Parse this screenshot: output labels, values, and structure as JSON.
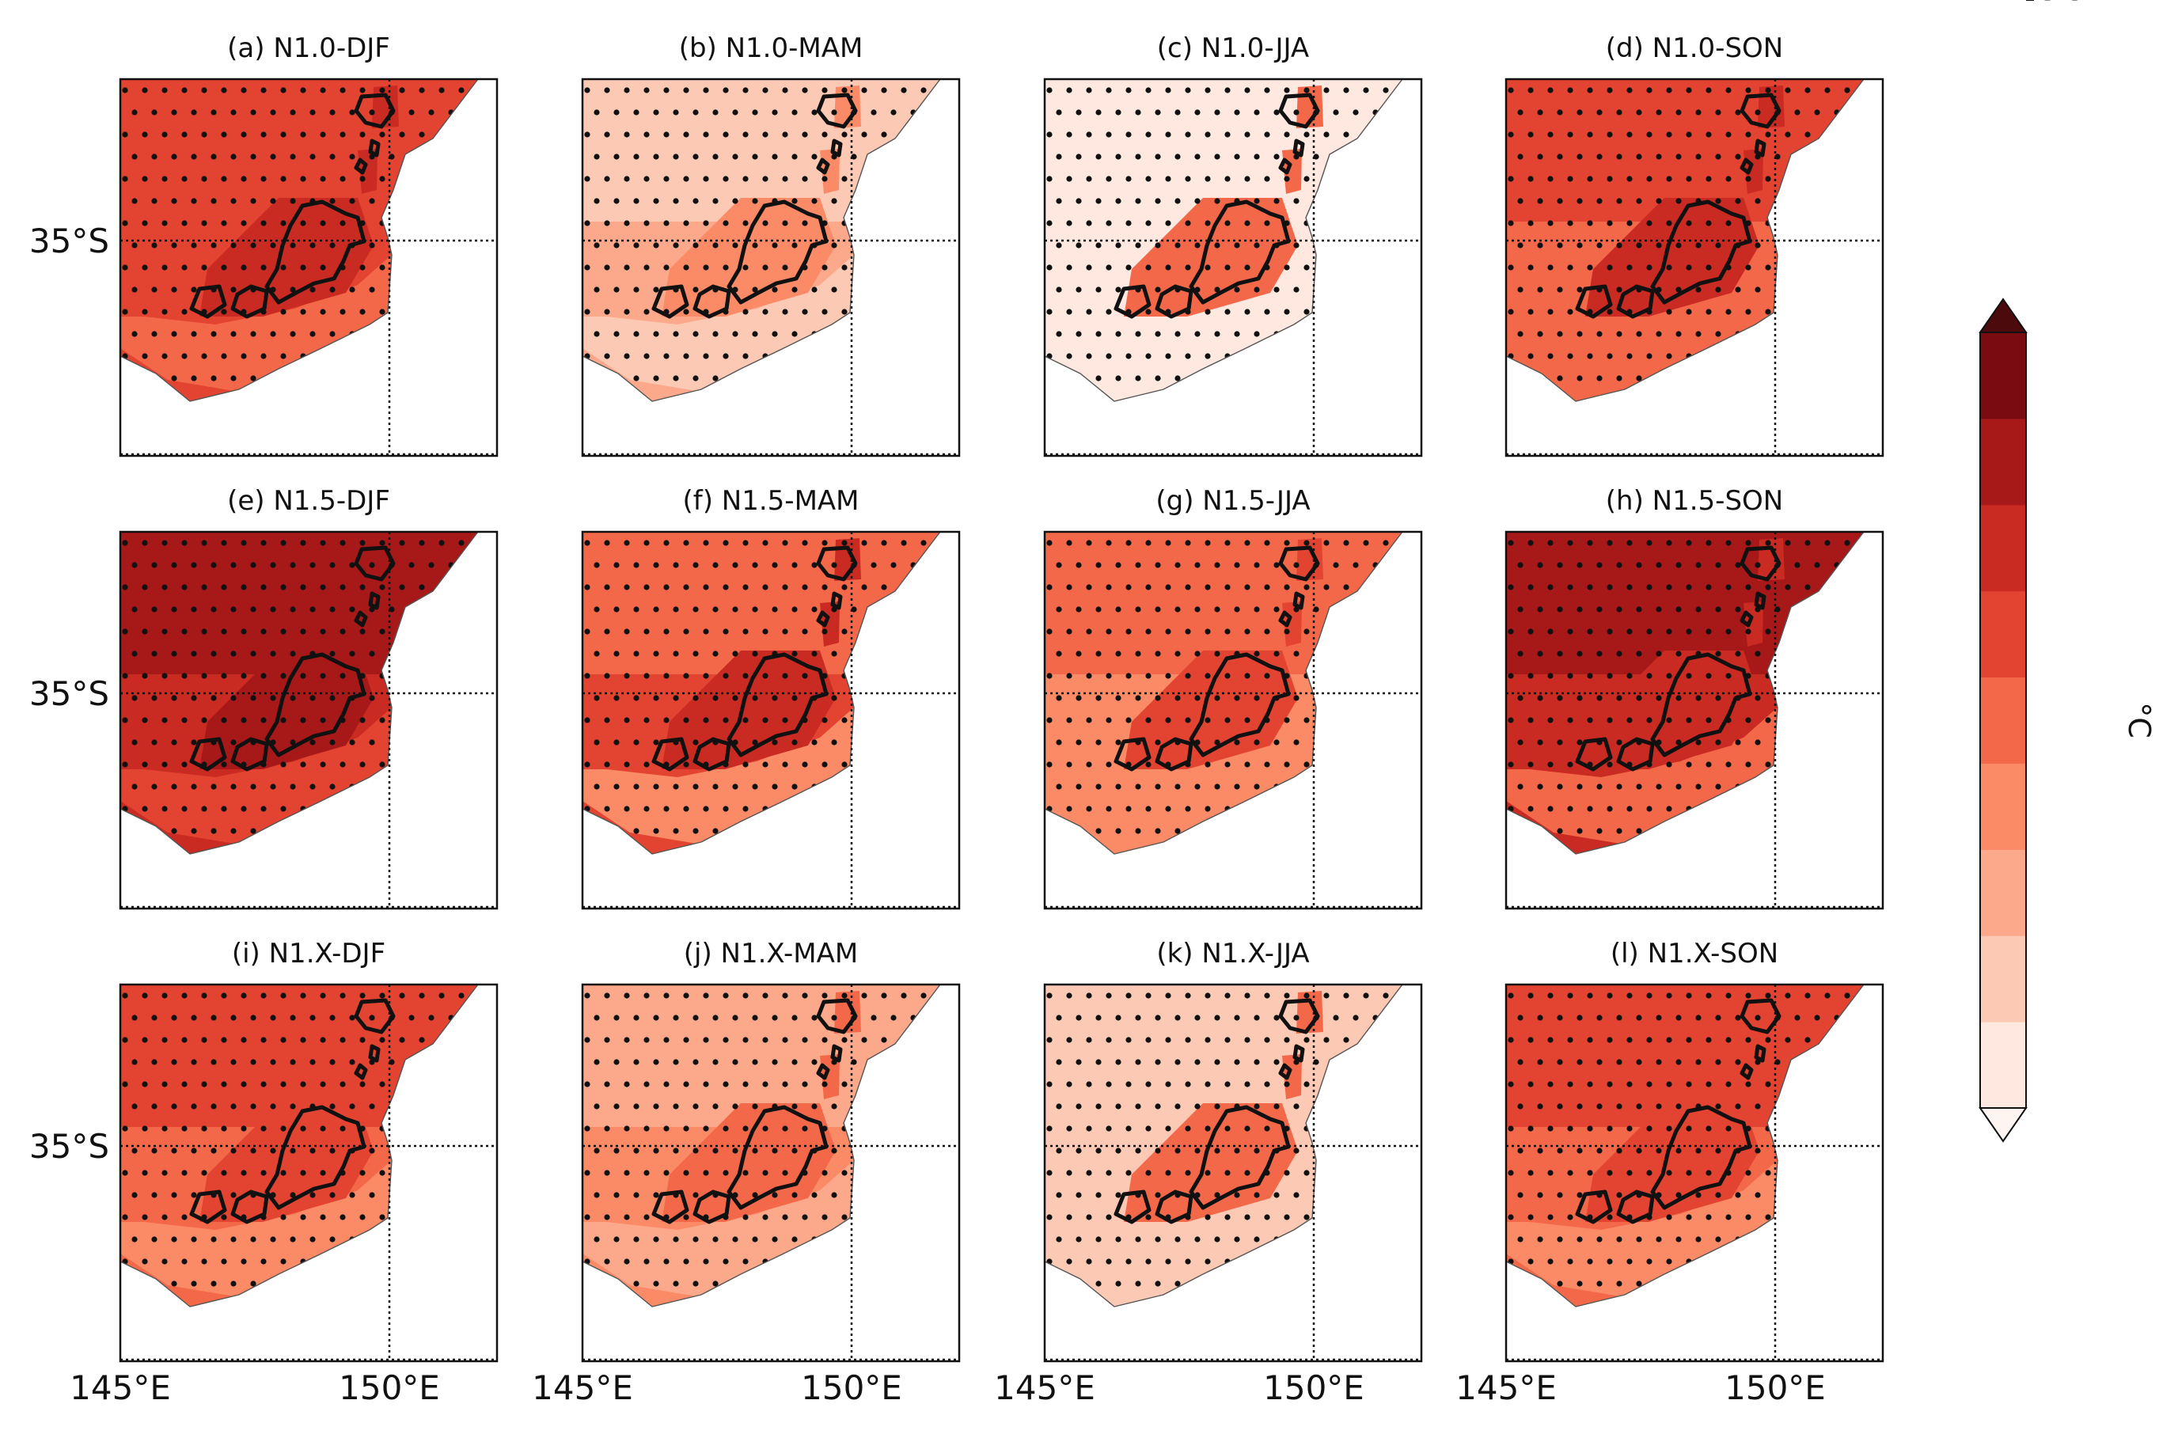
{
  "chart_data": {
    "type": "heatmap",
    "title": "",
    "variable": "temperature change",
    "colorbar": {
      "label": "°C",
      "ticks": [
        "1.6",
        "1.8",
        "2.0",
        "2.2",
        "2.4",
        "2.6",
        "2.8",
        "3.0",
        "3.2"
      ],
      "levels": [
        1.6,
        1.8,
        2.0,
        2.2,
        2.4,
        2.6,
        2.8,
        3.0,
        3.2
      ],
      "colors": [
        "#fee8df",
        "#fcc9b4",
        "#fca98b",
        "#fb8a67",
        "#f4684a",
        "#e34331",
        "#c92a22",
        "#a71819",
        "#7a0c11"
      ],
      "extend": "both",
      "under_color": "#fff5f0",
      "over_color": "#4d0a0d"
    },
    "axes": {
      "x_ticks": [
        "145°E",
        "150°E"
      ],
      "x_tick_values": [
        145,
        150
      ],
      "y_ticks": [
        "35°S"
      ],
      "y_tick_values": [
        -35
      ],
      "lon_range": [
        145,
        152
      ],
      "lat_range": [
        -39,
        -32
      ]
    },
    "panels": [
      {
        "title": "(a) N1.0-DJF",
        "north": 2.6,
        "south": 2.7,
        "core": 2.9,
        "coast": 2.4
      },
      {
        "title": "(b) N1.0-MAM",
        "north": 1.85,
        "south": 2.0,
        "core": 2.3,
        "coast": 1.9
      },
      {
        "title": "(c) N1.0-JJA",
        "north": 1.65,
        "south": 1.75,
        "core": 2.4,
        "coast": 1.7
      },
      {
        "title": "(d) N1.0-SON",
        "north": 2.6,
        "south": 2.55,
        "core": 2.8,
        "coast": 2.4
      },
      {
        "title": "(e) N1.5-DJF",
        "north": 3.1,
        "south": 2.9,
        "core": 3.05,
        "coast": 2.6
      },
      {
        "title": "(f) N1.5-MAM",
        "north": 2.5,
        "south": 2.6,
        "core": 2.8,
        "coast": 2.3
      },
      {
        "title": "(g) N1.5-JJA",
        "north": 2.4,
        "south": 2.35,
        "core": 2.75,
        "coast": 2.2
      },
      {
        "title": "(h) N1.5-SON",
        "north": 3.05,
        "south": 2.8,
        "core": 2.9,
        "coast": 2.5
      },
      {
        "title": "(i) N1.X-DJF",
        "north": 2.6,
        "south": 2.5,
        "core": 2.7,
        "coast": 2.3
      },
      {
        "title": "(j) N1.X-MAM",
        "north": 2.15,
        "south": 2.2,
        "core": 2.5,
        "coast": 2.0
      },
      {
        "title": "(k) N1.X-JJA",
        "north": 1.8,
        "south": 1.85,
        "core": 2.5,
        "coast": 1.8
      },
      {
        "title": "(l) N1.X-SON",
        "north": 2.6,
        "south": 2.45,
        "core": 2.75,
        "coast": 2.3
      }
    ],
    "significance": "stippling",
    "grid": "dotted"
  }
}
